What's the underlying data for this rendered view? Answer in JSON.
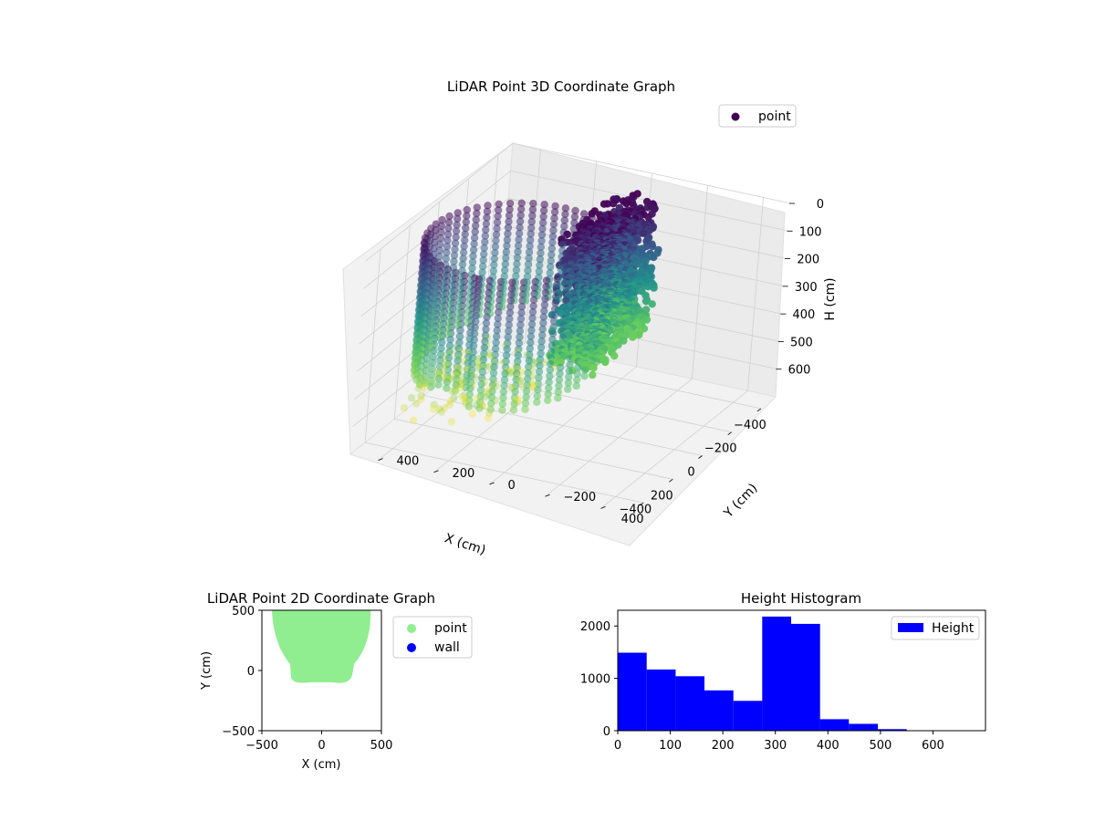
{
  "colors": {
    "hist_bar": "#0000ff",
    "scatter2d_point": "#90ee90",
    "scatter2d_wall": "#0000ff",
    "legend_point_3d": "#440154",
    "colormap": [
      "#440154",
      "#3b528b",
      "#21918c",
      "#5ec962",
      "#fde725"
    ]
  },
  "chart_data": [
    {
      "type": "scatter3d",
      "title": "LiDAR Point 3D Coordinate Graph",
      "xlabel": "X (cm)",
      "ylabel": "Y (cm)",
      "zlabel": "H (cm)",
      "x_ticks": [
        "-400",
        "-200",
        "0",
        "200",
        "400"
      ],
      "y_ticks": [
        "-400",
        "-200",
        "0",
        "200",
        "400"
      ],
      "z_ticks": [
        "0",
        "100",
        "200",
        "300",
        "400",
        "500",
        "600"
      ],
      "xlim": [
        -500,
        500
      ],
      "ylim": [
        -500,
        500
      ],
      "zlim": [
        0,
        700
      ],
      "z_inverted": true,
      "colormap": "viridis",
      "legend": {
        "entries": [
          "point"
        ],
        "placement": "top-right"
      },
      "grid": true
    },
    {
      "type": "scatter",
      "title": "LiDAR Point 2D Coordinate Graph",
      "xlabel": "X (cm)",
      "ylabel": "Y (cm)",
      "xlim": [
        -500,
        500
      ],
      "ylim": [
        -500,
        500
      ],
      "x_ticks": [
        "−500",
        "0",
        "500"
      ],
      "y_ticks": [
        "−500",
        "0",
        "500"
      ],
      "series": [
        {
          "name": "point",
          "color": "#90ee90"
        },
        {
          "name": "wall",
          "color": "#0000ff"
        }
      ],
      "legend": {
        "placement": "outside-right"
      },
      "grid": false
    },
    {
      "type": "bar",
      "title": "Height Histogram",
      "xlabel": "",
      "ylabel": "",
      "bin_edges": [
        0,
        55,
        110,
        165,
        220,
        275,
        330,
        385,
        440,
        495,
        550,
        605,
        660
      ],
      "values": [
        1490,
        1170,
        1040,
        770,
        570,
        2180,
        2040,
        220,
        130,
        30,
        0,
        0
      ],
      "xlim": [
        0,
        700
      ],
      "ylim": [
        0,
        2300
      ],
      "x_ticks": [
        "0",
        "100",
        "200",
        "300",
        "400",
        "500",
        "600"
      ],
      "y_ticks": [
        "0",
        "1000",
        "2000"
      ],
      "series": [
        {
          "name": "Height"
        }
      ],
      "legend": {
        "placement": "top-right"
      },
      "grid": false
    }
  ]
}
